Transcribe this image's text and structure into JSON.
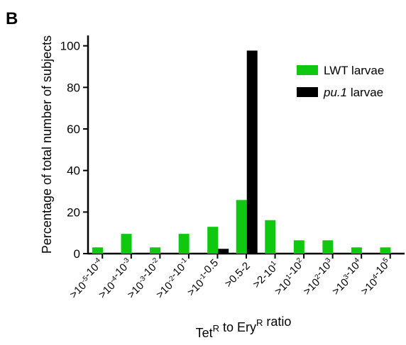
{
  "panel_label": "B",
  "chart_data": {
    "type": "bar",
    "ylabel": "Percentage of total number of subjects",
    "xlabel": {
      "parts": [
        {
          "t": "Tet"
        },
        {
          "t": "R",
          "sup": true
        },
        {
          "t": " to Ery"
        },
        {
          "t": "R",
          "sup": true
        },
        {
          "t": " ratio"
        }
      ]
    },
    "ylim": [
      0,
      105
    ],
    "yticks": [
      0,
      20,
      40,
      60,
      80,
      100
    ],
    "grid": false,
    "legend_position": "top-right",
    "categories": [
      [
        {
          "t": ">10"
        },
        {
          "t": "-5",
          "sup": true
        },
        {
          "t": "-10"
        },
        {
          "t": "-4",
          "sup": true
        }
      ],
      [
        {
          "t": ">10"
        },
        {
          "t": "-4",
          "sup": true
        },
        {
          "t": "-10"
        },
        {
          "t": "-3",
          "sup": true
        }
      ],
      [
        {
          "t": ">10"
        },
        {
          "t": "-3",
          "sup": true
        },
        {
          "t": "-10"
        },
        {
          "t": "-2",
          "sup": true
        }
      ],
      [
        {
          "t": ">10"
        },
        {
          "t": "-2",
          "sup": true
        },
        {
          "t": "-10"
        },
        {
          "t": "-1",
          "sup": true
        }
      ],
      [
        {
          "t": ">10"
        },
        {
          "t": "-1",
          "sup": true
        },
        {
          "t": "-0.5"
        }
      ],
      [
        {
          "t": ">0.5-2"
        }
      ],
      [
        {
          "t": ">2-10"
        },
        {
          "t": "1",
          "sup": true
        }
      ],
      [
        {
          "t": ">10"
        },
        {
          "t": "1",
          "sup": true
        },
        {
          "t": "-10"
        },
        {
          "t": "2",
          "sup": true
        }
      ],
      [
        {
          "t": ">10"
        },
        {
          "t": "2",
          "sup": true
        },
        {
          "t": "-10"
        },
        {
          "t": "3",
          "sup": true
        }
      ],
      [
        {
          "t": ">10"
        },
        {
          "t": "3",
          "sup": true
        },
        {
          "t": "-10"
        },
        {
          "t": "4",
          "sup": true
        }
      ],
      [
        {
          "t": ">10"
        },
        {
          "t": "4",
          "sup": true
        },
        {
          "t": "-10"
        },
        {
          "t": "5",
          "sup": true
        }
      ]
    ],
    "series": [
      {
        "name": "LWT larvae",
        "italic_part": "",
        "suffix": "LWT larvae",
        "color": "#11c811",
        "values": [
          3,
          9.5,
          3,
          9.5,
          12.9,
          25.8,
          16.1,
          6.4,
          6.4,
          3,
          3
        ]
      },
      {
        "name": "pu.1 larvae",
        "italic_part": "pu.1",
        "suffix": " larvae",
        "color": "#000000",
        "values": [
          0,
          0,
          0,
          0,
          2.3,
          97.7,
          0,
          0,
          0,
          0,
          0
        ]
      }
    ]
  }
}
